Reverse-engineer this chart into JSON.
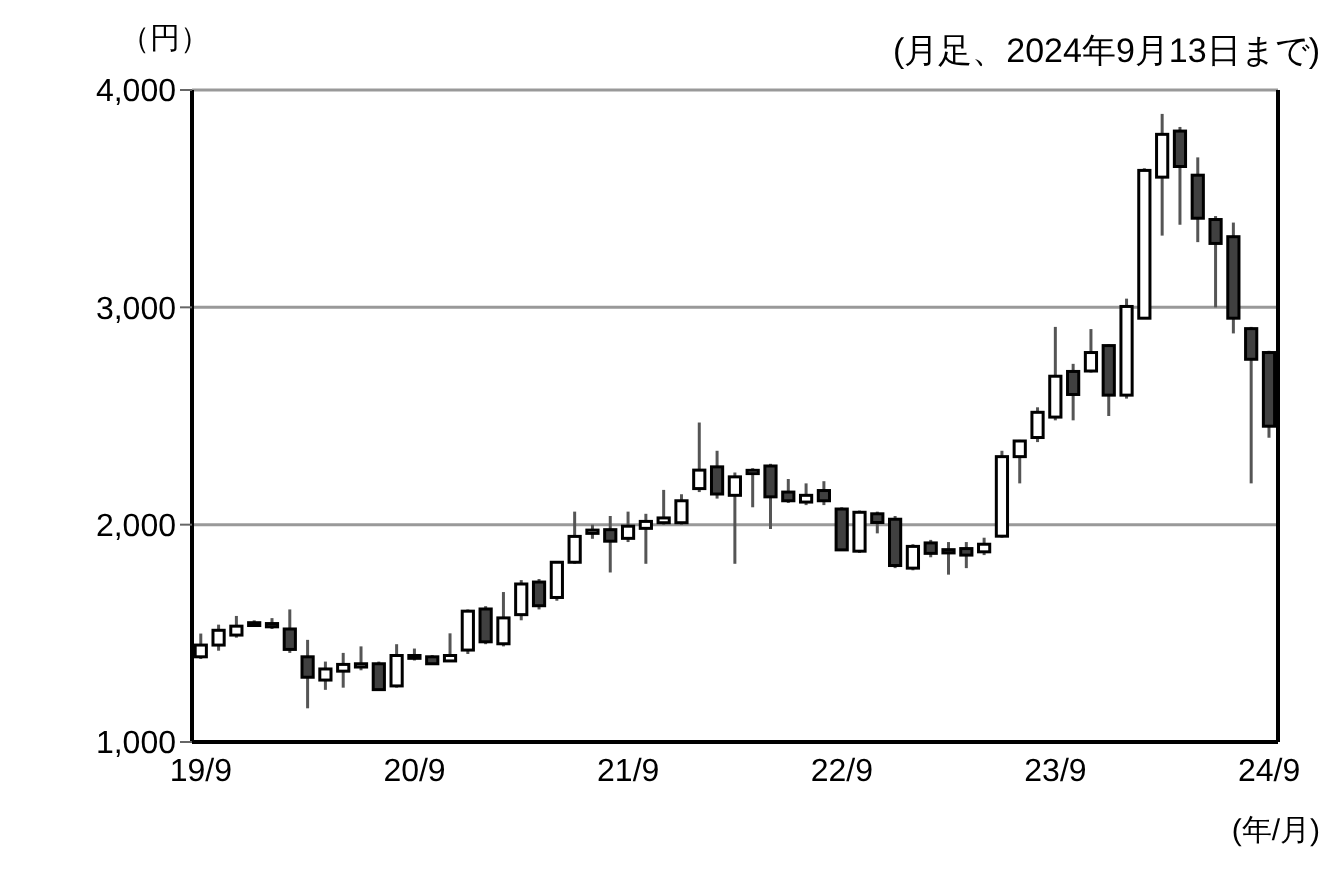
{
  "chart_data": {
    "type": "candlestick",
    "subtitle": "(月足、2024年9月13日まで)",
    "ylabel": "（円）",
    "xlabel": "(年/月)",
    "categories": [
      "19/9",
      null,
      null,
      null,
      null,
      null,
      null,
      null,
      null,
      null,
      null,
      null,
      "20/9",
      null,
      null,
      null,
      null,
      null,
      null,
      null,
      null,
      null,
      null,
      null,
      "21/9",
      null,
      null,
      null,
      null,
      null,
      null,
      null,
      null,
      null,
      null,
      null,
      "22/9",
      null,
      null,
      null,
      null,
      null,
      null,
      null,
      null,
      null,
      null,
      null,
      "23/9",
      null,
      null,
      null,
      null,
      null,
      null,
      null,
      null,
      null,
      null,
      null,
      "24/9"
    ],
    "ohlc": [
      [
        1392,
        1499,
        1382,
        1446
      ],
      [
        1446,
        1540,
        1420,
        1514
      ],
      [
        1492,
        1580,
        1480,
        1533
      ],
      [
        1536,
        1560,
        1530,
        1549
      ],
      [
        1545,
        1570,
        1520,
        1530
      ],
      [
        1520,
        1610,
        1410,
        1426
      ],
      [
        1392,
        1470,
        1155,
        1298
      ],
      [
        1285,
        1370,
        1240,
        1336
      ],
      [
        1326,
        1410,
        1250,
        1357
      ],
      [
        1345,
        1440,
        1330,
        1360
      ],
      [
        1360,
        1370,
        1235,
        1241
      ],
      [
        1258,
        1450,
        1250,
        1398
      ],
      [
        1385,
        1430,
        1375,
        1398
      ],
      [
        1392,
        1400,
        1355,
        1360
      ],
      [
        1373,
        1500,
        1370,
        1398
      ],
      [
        1423,
        1610,
        1405,
        1602
      ],
      [
        1612,
        1625,
        1450,
        1461
      ],
      [
        1452,
        1690,
        1440,
        1571
      ],
      [
        1586,
        1745,
        1560,
        1727
      ],
      [
        1736,
        1750,
        1610,
        1627
      ],
      [
        1665,
        1830,
        1650,
        1827
      ],
      [
        1827,
        2060,
        1820,
        1946
      ],
      [
        1960,
        2000,
        1935,
        1975
      ],
      [
        1977,
        2040,
        1780,
        1924
      ],
      [
        1937,
        2060,
        1920,
        1993
      ],
      [
        1983,
        2050,
        1820,
        2015
      ],
      [
        2009,
        2160,
        2000,
        2031
      ],
      [
        2009,
        2140,
        2000,
        2110
      ],
      [
        2166,
        2470,
        2150,
        2251
      ],
      [
        2266,
        2340,
        2120,
        2141
      ],
      [
        2135,
        2240,
        1820,
        2220
      ],
      [
        2235,
        2260,
        2080,
        2250
      ],
      [
        2270,
        2280,
        1980,
        2128
      ],
      [
        2150,
        2210,
        2100,
        2110
      ],
      [
        2104,
        2190,
        2090,
        2135
      ],
      [
        2157,
        2200,
        2090,
        2110
      ],
      [
        2072,
        2080,
        1880,
        1884
      ],
      [
        1878,
        2065,
        1870,
        2057
      ],
      [
        2050,
        2060,
        1960,
        2010
      ],
      [
        2025,
        2040,
        1800,
        1812
      ],
      [
        1800,
        1910,
        1790,
        1900
      ],
      [
        1916,
        1930,
        1850,
        1868
      ],
      [
        1885,
        1920,
        1770,
        1870
      ],
      [
        1890,
        1920,
        1800,
        1860
      ],
      [
        1875,
        1940,
        1860,
        1910
      ],
      [
        1947,
        2340,
        1940,
        2313
      ],
      [
        2313,
        2390,
        2190,
        2385
      ],
      [
        2401,
        2540,
        2380,
        2517
      ],
      [
        2495,
        2910,
        2480,
        2683
      ],
      [
        2705,
        2740,
        2480,
        2599
      ],
      [
        2707,
        2900,
        2700,
        2792
      ],
      [
        2824,
        2830,
        2500,
        2596
      ],
      [
        2596,
        3040,
        2580,
        3004
      ],
      [
        2950,
        3640,
        2950,
        3630
      ],
      [
        3599,
        3890,
        3330,
        3796
      ],
      [
        3811,
        3830,
        3380,
        3648
      ],
      [
        3608,
        3690,
        3300,
        3410
      ],
      [
        3404,
        3420,
        3000,
        3294
      ],
      [
        3325,
        3390,
        2880,
        2950
      ],
      [
        2902,
        2910,
        2190,
        2761
      ],
      [
        2792,
        2800,
        2400,
        2453
      ]
    ],
    "ylim": [
      1000,
      4000
    ],
    "yticks": [
      {
        "value": 1000,
        "label": "1,000"
      },
      {
        "value": 2000,
        "label": "2,000"
      },
      {
        "value": 3000,
        "label": "3,000"
      },
      {
        "value": 4000,
        "label": "4,000"
      }
    ],
    "grid": "y"
  }
}
